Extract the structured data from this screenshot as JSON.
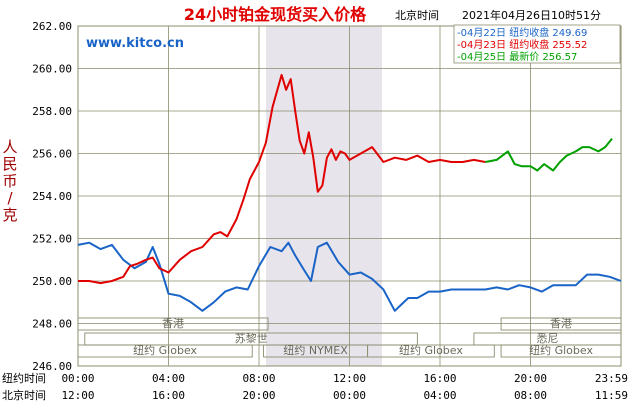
{
  "chart_data": {
    "type": "line",
    "title": "24小时铂金现货买入价格",
    "timezone_label": "北京时间",
    "datetime": "2021年04月26日10时51分",
    "watermark": "www.kitco.cn",
    "ylabel": "人民币/克",
    "ylim": [
      246,
      262
    ],
    "y_ticks": [
      "246.00",
      "248.00",
      "250.00",
      "252.00",
      "254.00",
      "256.00",
      "258.00",
      "260.00",
      "262.00"
    ],
    "x_rows": [
      {
        "name": "纽约时间",
        "ticks": [
          "00:00",
          "04:00",
          "08:00",
          "12:00",
          "16:00",
          "20:00",
          "23:59"
        ]
      },
      {
        "name": "北京时间",
        "ticks": [
          "12:00",
          "16:00",
          "20:00",
          "00:00",
          "04:00",
          "08:00",
          "11:59"
        ]
      }
    ],
    "legend": [
      {
        "date": "04月22日",
        "label": "纽约收盘",
        "value": "249.69",
        "color": "#1a64c8"
      },
      {
        "date": "04月23日",
        "label": "纽约收盘",
        "value": "255.52",
        "color": "#e00000"
      },
      {
        "date": "04月25日",
        "label": "最新价",
        "value": "256.57",
        "color": "#00a000"
      }
    ],
    "session_labels": {
      "hk": "香港",
      "zurich": "苏黎世",
      "ny_globex": "纽约 Globex",
      "ny_nymex": "纽约 NYMEX",
      "sydney": "悉尼"
    },
    "series": [
      {
        "color": "#1a64c8",
        "x": [
          0,
          0.5,
          1,
          1.5,
          2,
          2.5,
          3,
          3.3,
          3.6,
          4,
          4.5,
          5,
          5.5,
          6,
          6.5,
          7,
          7.5,
          8,
          8.5,
          9,
          9.3,
          9.6,
          10,
          10.3,
          10.6,
          11,
          11.5,
          12,
          12.5,
          13,
          13.5,
          14,
          14.3,
          14.6,
          15,
          15.5,
          16,
          16.5,
          17,
          17.5,
          18,
          18.5,
          19,
          19.5,
          20,
          20.5,
          21,
          21.5,
          22,
          22.5,
          23,
          23.5,
          24
        ],
        "y": [
          251.7,
          251.8,
          251.5,
          251.7,
          251.0,
          250.6,
          250.9,
          251.6,
          250.8,
          249.4,
          249.3,
          249.0,
          248.6,
          249.0,
          249.5,
          249.7,
          249.6,
          250.7,
          251.6,
          251.4,
          251.8,
          251.2,
          250.5,
          250.0,
          251.6,
          251.8,
          250.9,
          250.3,
          250.4,
          250.1,
          249.6,
          248.6,
          248.9,
          249.2,
          249.2,
          249.5,
          249.5,
          249.6,
          249.6,
          249.6,
          249.6,
          249.7,
          249.6,
          249.8,
          249.7,
          249.5,
          249.8,
          249.8,
          249.8,
          250.3,
          250.3,
          250.2,
          250.0
        ]
      },
      {
        "color": "#e00000",
        "x": [
          0,
          0.5,
          1,
          1.5,
          2,
          2.3,
          2.6,
          3,
          3.3,
          3.6,
          4,
          4.5,
          5,
          5.5,
          6,
          6.3,
          6.6,
          7,
          7.3,
          7.6,
          8,
          8.3,
          8.6,
          9,
          9.2,
          9.4,
          9.6,
          9.8,
          10,
          10.2,
          10.4,
          10.6,
          10.8,
          11,
          11.2,
          11.4,
          11.6,
          11.8,
          12,
          12.5,
          13,
          13.5,
          14,
          14.5,
          15,
          15.5,
          16,
          16.5,
          17,
          17.5,
          18
        ],
        "y": [
          250.0,
          250.0,
          249.9,
          250.0,
          250.2,
          250.7,
          250.8,
          251.0,
          251.1,
          250.6,
          250.4,
          251.0,
          251.4,
          251.6,
          252.2,
          252.3,
          252.1,
          252.9,
          253.8,
          254.8,
          255.6,
          256.5,
          258.2,
          259.7,
          259.0,
          259.5,
          258.0,
          256.6,
          256.0,
          257.0,
          255.8,
          254.2,
          254.5,
          255.8,
          256.2,
          255.7,
          256.1,
          256.0,
          255.7,
          256.0,
          256.3,
          255.6,
          255.8,
          255.7,
          255.9,
          255.6,
          255.7,
          255.6,
          255.6,
          255.7,
          255.6
        ]
      },
      {
        "color": "#00a000",
        "x": [
          18,
          18.5,
          19,
          19.3,
          19.6,
          20,
          20.3,
          20.6,
          21,
          21.3,
          21.6,
          22,
          22.3,
          22.6,
          23,
          23.3,
          23.6
        ],
        "y": [
          255.6,
          255.7,
          256.1,
          255.5,
          255.4,
          255.4,
          255.2,
          255.5,
          255.2,
          255.6,
          255.9,
          256.1,
          256.3,
          256.3,
          256.1,
          256.3,
          256.7
        ]
      }
    ]
  },
  "colors": {
    "axis_text": "#000000",
    "ylabel": "#a00000",
    "title": "#e00000",
    "watermark": "#1a64c8",
    "grid": "#8c8c6e",
    "shade": "#e8e4ec"
  }
}
